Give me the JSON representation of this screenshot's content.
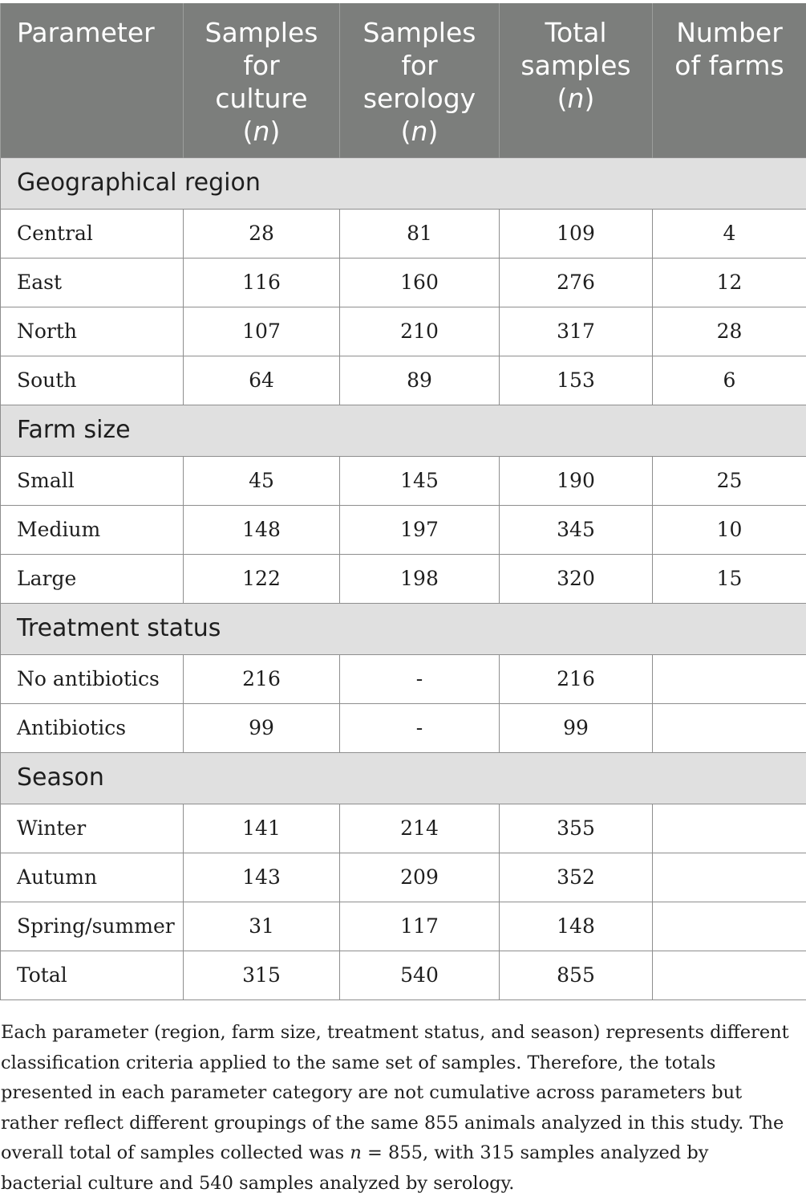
{
  "table": {
    "headers": [
      {
        "lines": [
          "Parameter"
        ]
      },
      {
        "lines": [
          "Samples",
          "for",
          "culture",
          "(n)"
        ]
      },
      {
        "lines": [
          "Samples",
          "for",
          "serology",
          "(n)"
        ]
      },
      {
        "lines": [
          "Total",
          "samples",
          "(n)"
        ]
      },
      {
        "lines": [
          "Number",
          "of farms"
        ]
      }
    ],
    "sections": [
      {
        "title": "Geographical region",
        "rows": [
          {
            "label": "Central",
            "culture": "28",
            "serology": "81",
            "total": "109",
            "farms": "4"
          },
          {
            "label": "East",
            "culture": "116",
            "serology": "160",
            "total": "276",
            "farms": "12"
          },
          {
            "label": "North",
            "culture": "107",
            "serology": "210",
            "total": "317",
            "farms": "28"
          },
          {
            "label": "South",
            "culture": "64",
            "serology": "89",
            "total": "153",
            "farms": "6"
          }
        ]
      },
      {
        "title": "Farm size",
        "rows": [
          {
            "label": "Small",
            "culture": "45",
            "serology": "145",
            "total": "190",
            "farms": "25"
          },
          {
            "label": "Medium",
            "culture": "148",
            "serology": "197",
            "total": "345",
            "farms": "10"
          },
          {
            "label": "Large",
            "culture": "122",
            "serology": "198",
            "total": "320",
            "farms": "15"
          }
        ]
      },
      {
        "title": "Treatment status",
        "rows": [
          {
            "label": "No antibiotics",
            "culture": "216",
            "serology": "-",
            "total": "216",
            "farms": ""
          },
          {
            "label": "Antibiotics",
            "culture": "99",
            "serology": "-",
            "total": "99",
            "farms": ""
          }
        ]
      },
      {
        "title": "Season",
        "rows": [
          {
            "label": "Winter",
            "culture": "141",
            "serology": "214",
            "total": "355",
            "farms": ""
          },
          {
            "label": "Autumn",
            "culture": "143",
            "serology": "209",
            "total": "352",
            "farms": ""
          },
          {
            "label": "Spring/summer",
            "culture": "31",
            "serology": "117",
            "total": "148",
            "farms": ""
          },
          {
            "label": "Total",
            "culture": "315",
            "serology": "540",
            "total": "855",
            "farms": ""
          }
        ]
      }
    ]
  },
  "footnote": {
    "before_n": "Each parameter (region, farm size, treatment status, and season) represents different classification criteria applied to the same set of samples. Therefore, the totals presented in each parameter category are not cumulative across parameters but rather reflect different groupings of the same 855 animals analyzed in this study. The overall total of samples collected was ",
    "n_symbol": "n",
    "after_n": " = 855, with 315 samples analyzed by bacterial culture and 540 samples analyzed by serology."
  }
}
